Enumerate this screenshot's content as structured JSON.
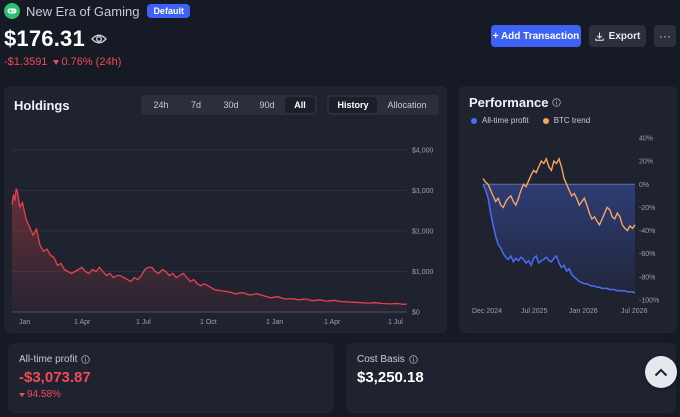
{
  "portfolio": {
    "name": "New Era of Gaming",
    "badge": "Default",
    "icon": "gamepad-icon",
    "value": "$176.31",
    "change_abs": "-$1.3591",
    "change_pct": "0.76% (24h)"
  },
  "actions": {
    "add_transaction": "+ Add Transaction",
    "export": "Export",
    "more": "···"
  },
  "holdings": {
    "title": "Holdings",
    "ranges": [
      "24h",
      "7d",
      "30d",
      "90d",
      "All"
    ],
    "active_range": "All",
    "views": [
      "History",
      "Allocation"
    ],
    "active_view": "History",
    "color": "#e5414b"
  },
  "performance": {
    "title": "Performance",
    "legend": [
      {
        "name": "All-time profit",
        "color": "#4a6cf7"
      },
      {
        "name": "BTC trend",
        "color": "#f6a560"
      }
    ]
  },
  "stats": {
    "profit_label": "All-time profit",
    "profit_value": "-$3,073.87",
    "profit_pct": "94.58%",
    "basis_label": "Cost Basis",
    "basis_value": "$3,250.18"
  },
  "chart_data": [
    {
      "type": "area",
      "title": "Holdings",
      "x_ticks": [
        "Jan",
        "1 Apr",
        "1 Jul",
        "1 Oct",
        "1 Jan",
        "1 Apr",
        "1 Jul"
      ],
      "y_ticks": [
        "$0",
        "$1,000",
        "$2,000",
        "$3,000",
        "$4,000"
      ],
      "ylim": [
        0,
        4000
      ],
      "x": [
        0,
        2,
        4,
        6,
        8,
        11,
        15,
        20,
        25,
        30,
        35,
        40,
        45,
        50,
        55,
        60,
        65,
        70,
        75,
        80,
        85,
        90,
        95,
        100,
        105,
        110,
        115,
        120,
        125,
        130,
        135,
        140,
        145,
        150,
        155,
        160,
        165,
        170,
        175,
        180,
        185,
        190,
        195,
        200,
        205,
        210,
        215,
        220,
        225,
        230,
        235,
        240,
        245,
        250,
        255,
        260,
        265,
        270,
        275,
        280,
        285,
        290,
        300,
        310,
        320,
        330,
        340,
        350,
        360,
        370,
        380,
        390,
        400,
        410,
        420,
        430,
        440,
        450,
        460,
        470,
        480,
        490,
        500,
        510,
        520,
        530,
        540,
        550,
        560,
        565
      ],
      "values": [
        2650,
        2900,
        2750,
        3050,
        2950,
        2600,
        2700,
        2300,
        2100,
        1900,
        2050,
        1650,
        1500,
        1550,
        1400,
        1350,
        1150,
        1200,
        1050,
        1000,
        950,
        1000,
        1050,
        1100,
        1000,
        950,
        1050,
        1000,
        1100,
        1000,
        900,
        950,
        850,
        900,
        900,
        850,
        800,
        750,
        850,
        800,
        900,
        1050,
        1100,
        1100,
        1000,
        950,
        1050,
        1000,
        900,
        950,
        850,
        900,
        950,
        850,
        750,
        800,
        700,
        650,
        700,
        650,
        600,
        550,
        520,
        500,
        450,
        480,
        420,
        450,
        400,
        350,
        380,
        320,
        330,
        300,
        320,
        280,
        300,
        270,
        290,
        260,
        250,
        240,
        230,
        220,
        230,
        210,
        200,
        210,
        190,
        195
      ]
    },
    {
      "type": "line",
      "title": "Performance",
      "x_ticks": [
        "Dec 2024",
        "Jul 2025",
        "Jan 2026",
        "Jul 2026"
      ],
      "y_ticks": [
        "40%",
        "20%",
        "0%",
        "-20%",
        "-40%",
        "-60%",
        "-80%",
        "-100%"
      ],
      "ylim": [
        -100,
        40
      ],
      "series": [
        {
          "name": "All-time profit",
          "x": [
            0,
            1,
            2,
            3,
            4,
            5,
            6,
            7,
            8,
            9,
            10,
            11,
            12,
            13,
            14,
            15,
            16,
            17,
            18,
            19,
            20,
            21,
            22,
            23,
            24,
            25,
            26,
            27,
            28,
            29,
            30,
            31,
            32,
            33,
            34,
            35,
            36,
            37,
            38,
            39,
            40,
            41,
            42,
            43,
            44,
            45,
            46,
            47,
            48,
            49,
            50,
            51,
            52,
            53,
            54,
            55,
            56,
            57,
            58,
            59,
            60
          ],
          "values": [
            0,
            -5,
            -12,
            -25,
            -35,
            -45,
            -52,
            -55,
            -60,
            -63,
            -65,
            -62,
            -67,
            -64,
            -66,
            -63,
            -65,
            -68,
            -66,
            -70,
            -64,
            -62,
            -68,
            -66,
            -65,
            -63,
            -66,
            -67,
            -64,
            -62,
            -68,
            -72,
            -70,
            -75,
            -73,
            -78,
            -80,
            -82,
            -84,
            -85,
            -86,
            -86,
            -87,
            -88,
            -88,
            -89,
            -89,
            -90,
            -90,
            -90,
            -91,
            -91,
            -91,
            -92,
            -92,
            -92,
            -92,
            -93,
            -93,
            -93,
            -94
          ]
        },
        {
          "name": "BTC trend",
          "x": [
            0,
            1,
            2,
            3,
            4,
            5,
            6,
            7,
            8,
            9,
            10,
            11,
            12,
            13,
            14,
            15,
            16,
            17,
            18,
            19,
            20,
            21,
            22,
            23,
            24,
            25,
            26,
            27,
            28,
            29,
            30,
            31,
            32,
            33,
            34,
            35,
            36,
            37,
            38,
            39,
            40,
            41,
            42,
            43,
            44,
            45,
            46,
            47,
            48,
            49,
            50,
            51,
            52,
            53,
            54,
            55,
            56,
            57,
            58,
            59,
            60
          ],
          "values": [
            5,
            2,
            0,
            -5,
            -10,
            -15,
            -12,
            -18,
            -20,
            -15,
            -12,
            -10,
            -15,
            -18,
            -12,
            -5,
            0,
            -2,
            3,
            8,
            12,
            10,
            15,
            20,
            18,
            22,
            15,
            12,
            20,
            18,
            22,
            15,
            5,
            0,
            -5,
            -10,
            -8,
            -12,
            -18,
            -15,
            -12,
            -18,
            -25,
            -30,
            -28,
            -32,
            -35,
            -30,
            -25,
            -20,
            -22,
            -28,
            -30,
            -25,
            -28,
            -35,
            -38,
            -40,
            -36,
            -38,
            -35
          ]
        }
      ]
    }
  ]
}
